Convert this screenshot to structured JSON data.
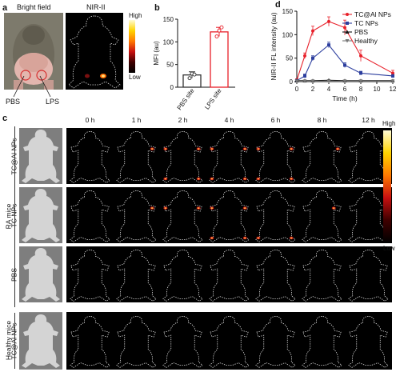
{
  "panel_labels": {
    "a": "a",
    "b": "b",
    "c": "c",
    "d": "d"
  },
  "panel_a": {
    "bright_field": "Bright field",
    "nir": "NIR-II",
    "colorbar_high": "High",
    "colorbar_low": "Low",
    "pbs": "PBS",
    "lps": "LPS"
  },
  "panel_b": {
    "chart_data": {
      "type": "bar",
      "categories": [
        "PBS site",
        "LPS site"
      ],
      "values": [
        27,
        122
      ],
      "errors": [
        7,
        10
      ],
      "points": [
        [
          20,
          30,
          28
        ],
        [
          112,
          125,
          132
        ]
      ],
      "ylabel": "MFI (au)",
      "ylim": [
        0,
        150
      ],
      "yticks": [
        "0",
        "50",
        "100",
        "150"
      ],
      "colors": [
        "#333333",
        "#e8202a"
      ]
    }
  },
  "panel_d": {
    "chart_data": {
      "type": "line",
      "x": [
        0,
        1,
        2,
        4,
        6,
        8,
        12
      ],
      "xlabel": "Time (h)",
      "ylabel": "NIR-II FL intensity (au)",
      "xlim": [
        0,
        12
      ],
      "ylim": [
        0,
        150
      ],
      "xticks": [
        "0",
        "2",
        "4",
        "6",
        "8",
        "10",
        "12"
      ],
      "yticks": [
        "0",
        "50",
        "100",
        "150"
      ],
      "legend": "top-right",
      "series": [
        {
          "name": "TC@Al NPs",
          "color": "#e8202a",
          "marker": "circle",
          "values": [
            3,
            55,
            108,
            128,
            115,
            55,
            18
          ],
          "err": [
            3,
            6,
            10,
            10,
            16,
            12,
            6
          ]
        },
        {
          "name": "TC NPs",
          "color": "#2c3e9e",
          "marker": "square",
          "values": [
            2,
            12,
            50,
            78,
            35,
            18,
            12
          ],
          "err": [
            2,
            4,
            5,
            6,
            5,
            4,
            3
          ]
        },
        {
          "name": "PBS",
          "color": "#111111",
          "marker": "triangle",
          "values": [
            2,
            2,
            2,
            3,
            2,
            2,
            2
          ],
          "err": [
            1,
            1,
            1,
            1,
            1,
            1,
            1
          ]
        },
        {
          "name": "Healthy",
          "color": "#777777",
          "marker": "triangle-down",
          "values": [
            1,
            1,
            1,
            1,
            1,
            1,
            1
          ],
          "err": [
            0,
            0,
            0,
            0,
            0,
            0,
            0
          ]
        }
      ]
    }
  },
  "panel_c": {
    "times": [
      "0 h",
      "1 h",
      "2 h",
      "4 h",
      "6 h",
      "8 h",
      "12 h"
    ],
    "rows": [
      "TC@Al NPs",
      "TC NPs",
      "PBS",
      "TC@Al NPs"
    ],
    "group_ra": "RA mice",
    "group_healthy": "Healthy mice",
    "colorbar_high": "High",
    "colorbar_low": "Low"
  }
}
